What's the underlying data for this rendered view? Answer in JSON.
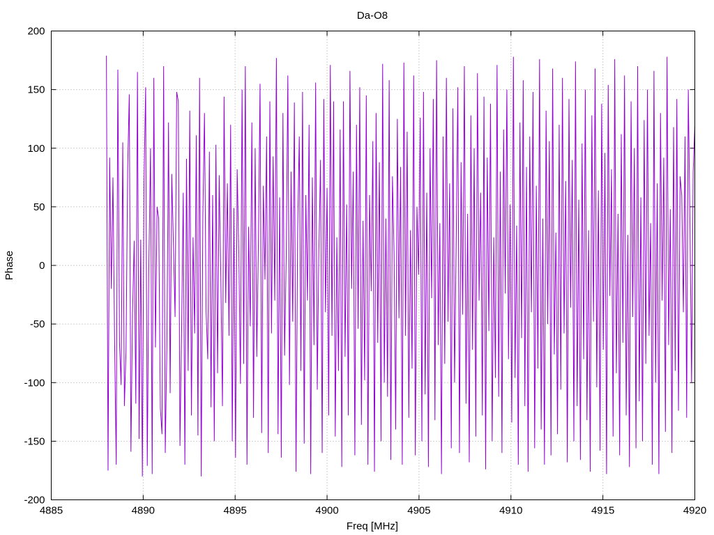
{
  "chart_data": {
    "type": "line",
    "title": "Da-O8",
    "xlabel": "Freq [MHz]",
    "ylabel": "Phase",
    "xlim": [
      4885,
      4920
    ],
    "ylim": [
      -200,
      200
    ],
    "x_ticks": [
      "4885",
      "4890",
      "4895",
      "4900",
      "4905",
      "4910",
      "4915",
      "4920"
    ],
    "y_ticks": [
      "200",
      "150",
      "100",
      "50",
      "0",
      "-50",
      "-100",
      "-150",
      "-200"
    ],
    "grid": true,
    "series": [
      {
        "color": "#9400d3",
        "x_start": 4888.0,
        "x_end": 4920.0,
        "values": [
          179,
          -175,
          92,
          -20,
          75,
          -63,
          -170,
          167,
          -66,
          -102,
          105,
          -120,
          -73,
          83,
          146,
          -159,
          -40,
          21,
          -118,
          165,
          -148,
          22,
          -180,
          70,
          152,
          -171,
          3,
          100,
          -178,
          160,
          -70,
          50,
          40,
          -122,
          -144,
          170,
          -160,
          -70,
          122,
          -109,
          78,
          17,
          -44,
          148,
          140,
          -154,
          -56,
          62,
          -170,
          91,
          -90,
          132,
          -128,
          24,
          -58,
          111,
          -145,
          160,
          -180,
          41,
          130,
          -40,
          -80,
          97,
          -121,
          60,
          -150,
          103,
          -92,
          77,
          -10,
          -120,
          144,
          -32,
          70,
          -60,
          120,
          -150,
          49,
          -164,
          82,
          12,
          -101,
          150,
          -84,
          170,
          -170,
          33,
          -52,
          122,
          -130,
          100,
          -78,
          20,
          155,
          -143,
          68,
          -12,
          110,
          -160,
          140,
          -58,
          93,
          -30,
          177,
          -144,
          58,
          -164,
          130,
          -77,
          8,
          162,
          -102,
          80,
          -48,
          139,
          -176,
          30,
          110,
          -90,
          148,
          -152,
          60,
          -30,
          120,
          -178,
          75,
          -68,
          156,
          -106,
          12,
          90,
          -160,
          142,
          -40,
          66,
          -128,
          171,
          -60,
          140,
          -146,
          24,
          -90,
          116,
          -172,
          140,
          -78,
          52,
          -128,
          166,
          -20,
          80,
          -162,
          120,
          -54,
          152,
          -136,
          38,
          -98,
          145,
          -170,
          60,
          -22,
          106,
          -176,
          130,
          -66,
          88,
          -150,
          172,
          -100,
          40,
          -112,
          158,
          -166,
          76,
          10,
          -140,
          125,
          -45,
          84,
          -170,
          173,
          -60,
          114,
          -130,
          30,
          -88,
          162,
          -162,
          50,
          -8,
          126,
          -150,
          148,
          -110,
          62,
          -172,
          100,
          -28,
          142,
          -132,
          175,
          -68,
          36,
          -178,
          110,
          -84,
          160,
          -48,
          70,
          -156,
          134,
          -100,
          20,
          152,
          -160,
          88,
          -42,
          170,
          -118,
          44,
          -168,
          128,
          -72,
          100,
          -146,
          164,
          -30,
          62,
          -128,
          144,
          -174,
          92,
          -56,
          138,
          -150,
          24,
          -96,
          171,
          -112,
          80,
          -160,
          116,
          -24,
          150,
          -80,
          52,
          -134,
          178,
          -96,
          34,
          -170,
          122,
          -62,
          158,
          -120,
          84,
          -176,
          110,
          -40,
          148,
          -156,
          68,
          -88,
          176,
          -140,
          40,
          -170,
          132,
          -50,
          106,
          -162,
          168,
          -76,
          28,
          -144,
          120,
          -106,
          160,
          -58,
          72,
          -168,
          142,
          -36,
          90,
          -150,
          174,
          -120,
          56,
          -166,
          104,
          -80,
          150,
          -132,
          30,
          -176,
          128,
          -48,
          168,
          -104,
          64,
          -158,
          138,
          -72,
          96,
          -178,
          154,
          -26,
          82,
          -146,
          176,
          -92,
          44,
          -162,
          112,
          -66,
          162,
          -128,
          26,
          -172,
          140,
          -44,
          100,
          -156,
          170,
          -116,
          58,
          -150,
          124,
          -84,
          150,
          -60,
          36,
          -170,
          166,
          -100,
          70,
          -178,
          130,
          -30,
          92,
          -142,
          178,
          -68,
          48,
          -160,
          118,
          -90,
          142,
          -124,
          76,
          60,
          -40,
          110,
          -130,
          150,
          40,
          -100,
          80,
          120
        ]
      }
    ]
  }
}
